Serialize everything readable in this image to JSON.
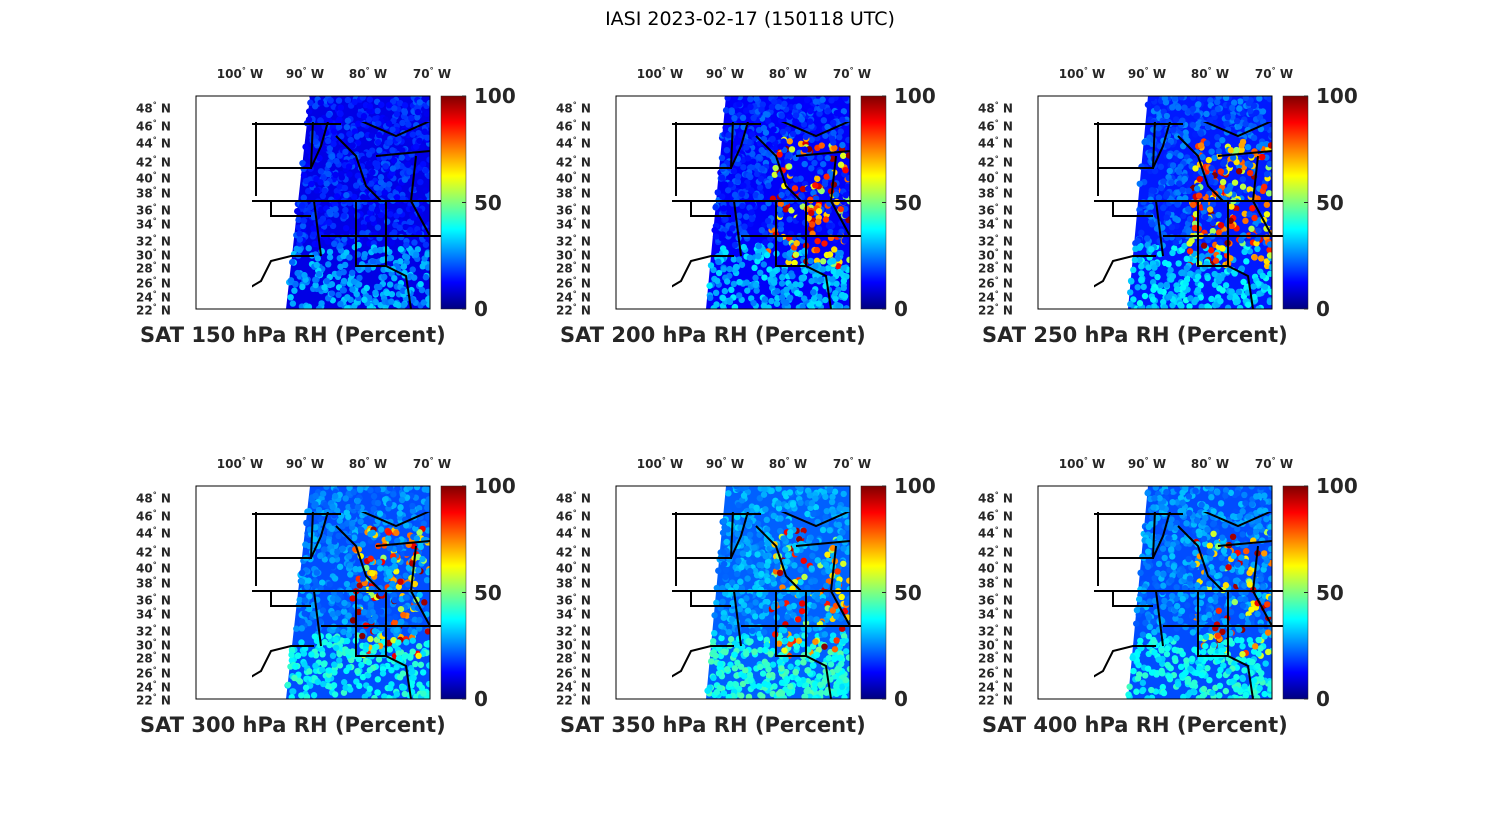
{
  "title": "IASI 2023-02-17 (150118 UTC)",
  "colormap": "jet",
  "colorbar": {
    "range": [
      0,
      100
    ],
    "ticks": [
      "100",
      "50",
      "0"
    ]
  },
  "lon_labels": [
    "100",
    "90",
    "80",
    "70"
  ],
  "lon_suffix": "W",
  "lat_labels": [
    "48",
    "46",
    "44",
    "42",
    "40",
    "38",
    "36",
    "34",
    "32",
    "30",
    "28",
    "26",
    "24",
    "22"
  ],
  "lat_suffix": "N",
  "panels": [
    {
      "label": "SAT 150 hPa RH (Percent)"
    },
    {
      "label": "SAT 200 hPa RH (Percent)"
    },
    {
      "label": "SAT 250 hPa RH (Percent)"
    },
    {
      "label": "SAT 300 hPa RH (Percent)"
    },
    {
      "label": "SAT 350 hPa RH (Percent)"
    },
    {
      "label": "SAT 400 hPa RH (Percent)"
    }
  ]
}
